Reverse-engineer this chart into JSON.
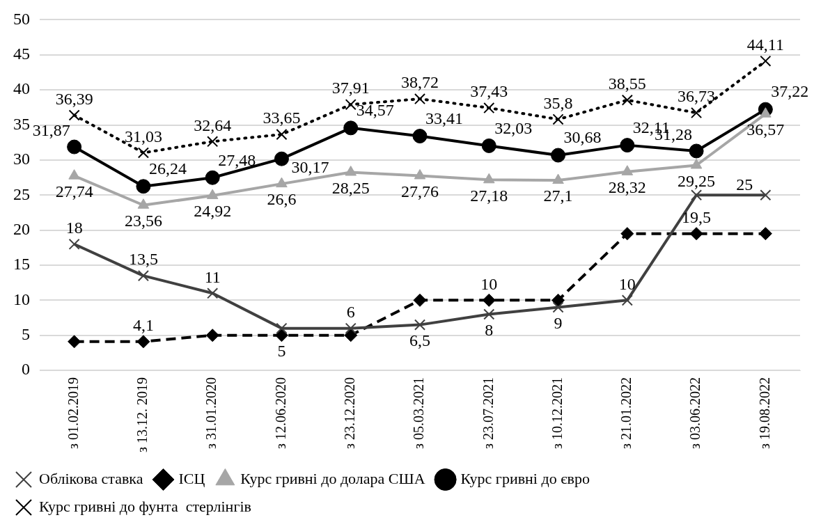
{
  "chart_data": {
    "type": "line",
    "categories": [
      "з 01.02.2019",
      "з 13.12. 2019",
      "з 31.01.2020",
      "з 12.06.2020",
      "з 23.12.2020",
      "з 05.03.2021",
      "з 23.07.2021",
      "з 10.12.2021",
      "з 21.01.2022",
      "з 03.06.2022",
      "з 19.08.2022"
    ],
    "series": [
      {
        "name": "Облікова ставка",
        "color": "#404040",
        "marker": "cross",
        "line_style": "solid",
        "values": [
          18,
          13.5,
          11,
          6,
          6,
          6.5,
          8,
          9,
          10,
          25,
          25
        ],
        "value_labels": [
          "18",
          "13,5",
          "11",
          null,
          "6",
          "6,5",
          "8",
          "9",
          "10",
          null,
          "25"
        ]
      },
      {
        "name": "ІСЦ",
        "color": "#000000",
        "marker": "diamond",
        "line_style": "dashed",
        "values": [
          4.1,
          4.1,
          5,
          5,
          5,
          10,
          10,
          10,
          19.5,
          19.5,
          19.5
        ],
        "value_labels": [
          null,
          "4,1",
          null,
          "5",
          null,
          null,
          "10",
          null,
          null,
          "19,5",
          null
        ]
      },
      {
        "name": "Курс гривні до долара США",
        "color": "#a6a6a6",
        "marker": "triangle",
        "line_style": "solid",
        "values": [
          27.74,
          23.56,
          24.92,
          26.6,
          28.25,
          27.76,
          27.18,
          27.1,
          28.32,
          29.25,
          36.57
        ],
        "value_labels": [
          "27,74",
          "23,56",
          "24,92",
          "26,6",
          "28,25",
          "27,76",
          "27,18",
          "27,1",
          "28,32",
          "29,25",
          "36,57"
        ]
      },
      {
        "name": "Курс гривні до євро",
        "color": "#000000",
        "marker": "circle",
        "line_style": "solid",
        "values": [
          31.87,
          26.24,
          27.48,
          30.17,
          34.57,
          33.41,
          32.03,
          30.68,
          32.11,
          31.28,
          37.22
        ],
        "value_labels": [
          "31,87",
          "26,24",
          "27,48",
          "30,17",
          "34,57",
          "33,41",
          "32,03",
          "30,68",
          "32,11",
          "31,28",
          "37,22"
        ]
      },
      {
        "name": "Курс гривні до фунта  стерлінгів",
        "color": "#000000",
        "marker": "cross",
        "line_style": "dotted",
        "values": [
          36.39,
          31.03,
          32.64,
          33.65,
          37.91,
          38.72,
          37.43,
          35.8,
          38.55,
          36.73,
          44.11
        ],
        "value_labels": [
          "36,39",
          "31,03",
          "32,64",
          "33,65",
          "37,91",
          "38,72",
          "37,43",
          "35,8",
          "38,55",
          "36,73",
          "44,11"
        ]
      }
    ],
    "ylim": [
      0,
      50
    ],
    "yticks": [
      0,
      5,
      10,
      15,
      20,
      25,
      30,
      35,
      40,
      45,
      50
    ],
    "grid": "y",
    "legend": "bottom"
  }
}
